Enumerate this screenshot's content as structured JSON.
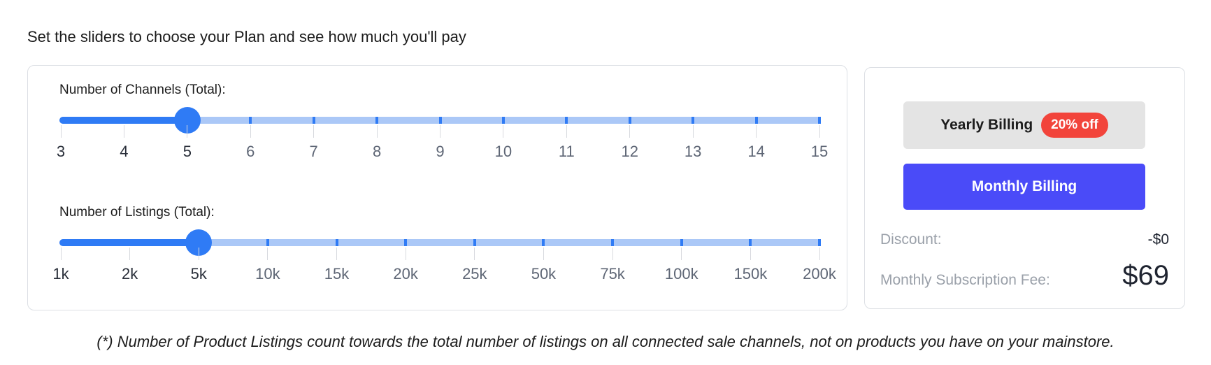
{
  "heading": "Set the sliders to choose your Plan and see how much you'll pay",
  "channels": {
    "label": "Number of Channels (Total):",
    "ticks": [
      "3",
      "4",
      "5",
      "6",
      "7",
      "8",
      "9",
      "10",
      "11",
      "12",
      "13",
      "14",
      "15"
    ],
    "selected_index": 2,
    "selected_value": "5"
  },
  "listings": {
    "label": "Number of Listings (Total):",
    "ticks": [
      "1k",
      "2k",
      "5k",
      "10k",
      "15k",
      "20k",
      "25k",
      "50k",
      "75k",
      "100k",
      "150k",
      "200k"
    ],
    "selected_index": 2,
    "selected_value": "5k"
  },
  "billing": {
    "yearly_label": "Yearly Billing",
    "yearly_badge": "20% off",
    "monthly_label": "Monthly Billing",
    "active": "monthly"
  },
  "summary": {
    "discount_label": "Discount:",
    "discount_value": "-$0",
    "fee_label": "Monthly Subscription Fee:",
    "fee_value": "$69"
  },
  "footnote": "(*) Number of Product Listings count towards the total number of listings on all connected sale channels, not on products you have on your mainstore.",
  "colors": {
    "accent": "#2f7bf5",
    "track": "#abc8f7",
    "monthly_button": "#4a4bf8",
    "badge": "#f2443b"
  }
}
